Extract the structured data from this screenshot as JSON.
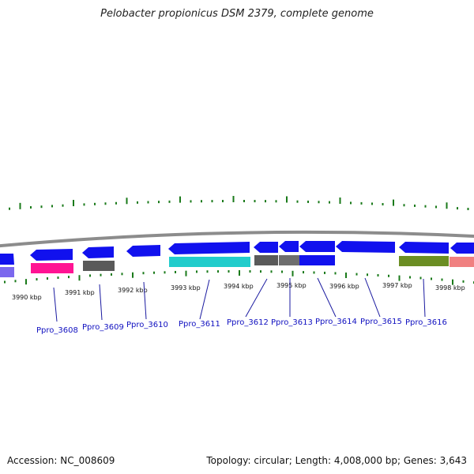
{
  "header": {
    "title": "Pelobacter propionicus DSM 2379, complete genome"
  },
  "footer": {
    "accession": "Accession: NC_008609",
    "summary": "Topology: circular; Length: 4,008,000 bp; Genes: 3,643"
  },
  "colors": {
    "backbone": "#8c8c8c",
    "ticks": "#1a7a1a",
    "leader": "#1a1aa0",
    "label": "#1010c0"
  },
  "scale": {
    "kbp_labels": [
      "3990 kbp",
      "3991 kbp",
      "3992 kbp",
      "3993 kbp",
      "3994 kbp",
      "3995 kbp",
      "3996 kbp",
      "3997 kbp",
      "3998 kbp"
    ]
  },
  "genes": [
    {
      "name": "Ppro_3608",
      "color": "#ff1493"
    },
    {
      "name": "Ppro_3609",
      "color": "#555555"
    },
    {
      "name": "Ppro_3610",
      "color": "#1111ee"
    },
    {
      "name": "Ppro_3611",
      "color": "#22cccc"
    },
    {
      "name": "Ppro_3612",
      "color": "#555555"
    },
    {
      "name": "Ppro_3613",
      "color": "#666666"
    },
    {
      "name": "Ppro_3614",
      "color": "#1111ee"
    },
    {
      "name": "Ppro_3615",
      "color": "#1111ee"
    },
    {
      "name": "Ppro_3616",
      "color": "#6b8e23"
    }
  ]
}
